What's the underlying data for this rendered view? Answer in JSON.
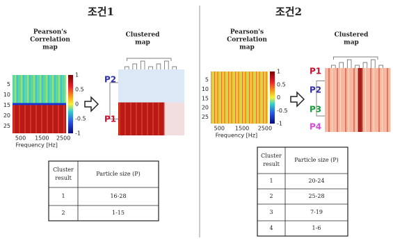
{
  "panels": [
    {
      "title": "조건1",
      "correlation_label": [
        "Pearson's",
        "Correlation",
        "map"
      ],
      "clustered_label": [
        "Clustered",
        "map"
      ],
      "heatmap_yticks": [
        "5",
        "10",
        "15",
        "20",
        "25"
      ],
      "heatmap_xticks": [
        "500",
        "1500",
        "2500"
      ],
      "heatmap_xlabel": "Frequency [Hz]",
      "colorbar_ticks": [
        "1",
        "0.5",
        "0",
        "-0.5",
        "-1"
      ],
      "cluster_labels": [
        {
          "label": "P2",
          "color": "#2f2fa8"
        },
        {
          "label": "P1",
          "color": "#c8102e"
        }
      ],
      "table": {
        "header": [
          [
            "Cluster",
            "result"
          ],
          [
            "Particle size (P)"
          ]
        ],
        "rows": [
          [
            "1",
            "16-28"
          ],
          [
            "2",
            "1-15"
          ]
        ]
      }
    },
    {
      "title": "조건2",
      "correlation_label": [
        "Pearson's",
        "Correlation",
        "map"
      ],
      "clustered_label": [
        "Clustered",
        "map"
      ],
      "heatmap_yticks": [
        "5",
        "10",
        "15",
        "20",
        "25"
      ],
      "heatmap_xticks": [
        "500",
        "1500",
        "2500"
      ],
      "heatmap_xlabel": "Frequency [Hz]",
      "colorbar_ticks": [
        "1",
        "0.5",
        "0",
        "-0.5",
        "-1"
      ],
      "cluster_labels": [
        {
          "label": "P1",
          "color": "#c8102e"
        },
        {
          "label": "P2",
          "color": "#2f2fa8"
        },
        {
          "label": "P3",
          "color": "#1a9a3a"
        },
        {
          "label": "P4",
          "color": "#d24fd8"
        }
      ],
      "table": {
        "header": [
          [
            "Cluster",
            "result"
          ],
          [
            "Particle size (P)"
          ]
        ],
        "rows": [
          [
            "1",
            "20-24"
          ],
          [
            "2",
            "25-28"
          ],
          [
            "3",
            "7-19"
          ],
          [
            "4",
            "1-6"
          ]
        ]
      }
    }
  ]
}
